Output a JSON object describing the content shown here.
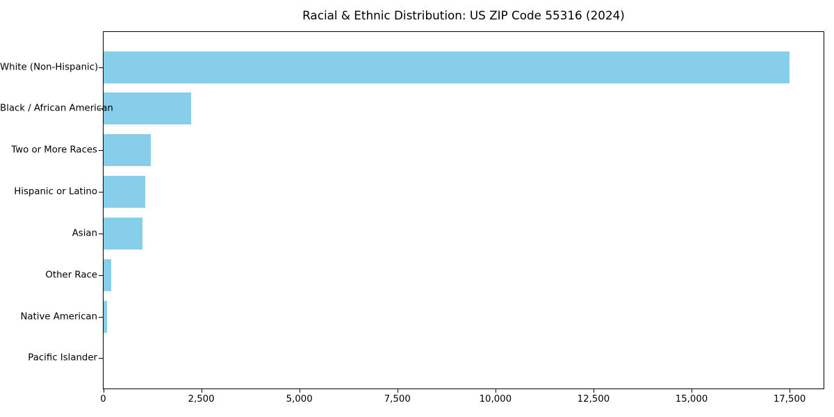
{
  "chart_data": {
    "type": "bar",
    "orientation": "horizontal",
    "title": "Racial & Ethnic Distribution: US ZIP Code 55316 (2024)",
    "categories": [
      "White (Non-Hispanic)",
      "Black / African American",
      "Two or More Races",
      "Hispanic or Latino",
      "Asian",
      "Other Race",
      "Native American",
      "Pacific Islander"
    ],
    "values": [
      17500,
      2240,
      1200,
      1060,
      1000,
      200,
      90,
      0
    ],
    "xlabel": "",
    "ylabel": "",
    "xlim": [
      0,
      18375
    ],
    "x_ticks": [
      0,
      2500,
      5000,
      7500,
      10000,
      12500,
      15000,
      17500
    ],
    "x_tick_labels": [
      "0",
      "2,500",
      "5,000",
      "7,500",
      "10,000",
      "12,500",
      "15,000",
      "17,500"
    ],
    "bar_color": "#87CEEB",
    "axis_color": "#000000",
    "text_color": "#000000",
    "background_color": "#ffffff",
    "grid": false,
    "legend": null
  }
}
